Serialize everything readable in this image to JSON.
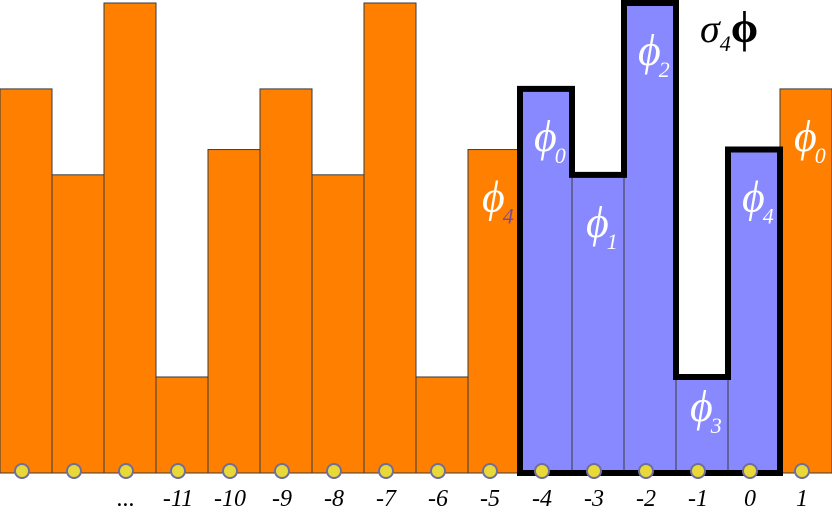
{
  "title": {
    "sigma": "σ",
    "sigma_sub": "4",
    "phi": "ϕ"
  },
  "chart_data": {
    "type": "bar",
    "categories": [
      "",
      "",
      "...",
      "-11",
      "-10",
      "-9",
      "-8",
      "-7",
      "-6",
      "-5",
      "-4",
      "-3",
      "-2",
      "-1",
      "0",
      "1"
    ],
    "values": [
      7.6,
      5.9,
      9.3,
      1.9,
      6.4,
      7.6,
      5.9,
      9.3,
      1.9,
      6.4,
      7.6,
      5.9,
      9.3,
      1.9,
      6.4,
      7.6
    ],
    "ylim": [
      0,
      9.3
    ],
    "colors": {
      "orange": "#FF8000",
      "blue": "#8888FF",
      "outline": "#000000",
      "dot": "#E8D838",
      "dot_border": "#6E6E9E"
    },
    "highlighted_range": [
      "-4",
      "0"
    ],
    "bar_labels": [
      {
        "category": "-5",
        "base": "ϕ",
        "sub": "4",
        "color": "orange"
      },
      {
        "category": "-4",
        "base": "ϕ",
        "sub": "0",
        "color": "blue"
      },
      {
        "category": "-3",
        "base": "ϕ",
        "sub": "1",
        "color": "blue"
      },
      {
        "category": "-2",
        "base": "ϕ",
        "sub": "2",
        "color": "blue"
      },
      {
        "category": "-1",
        "base": "ϕ",
        "sub": "3",
        "color": "blue"
      },
      {
        "category": "0",
        "base": "ϕ",
        "sub": "4",
        "color": "blue"
      },
      {
        "category": "1",
        "base": "ϕ",
        "sub": "0",
        "color": "orange"
      }
    ]
  }
}
